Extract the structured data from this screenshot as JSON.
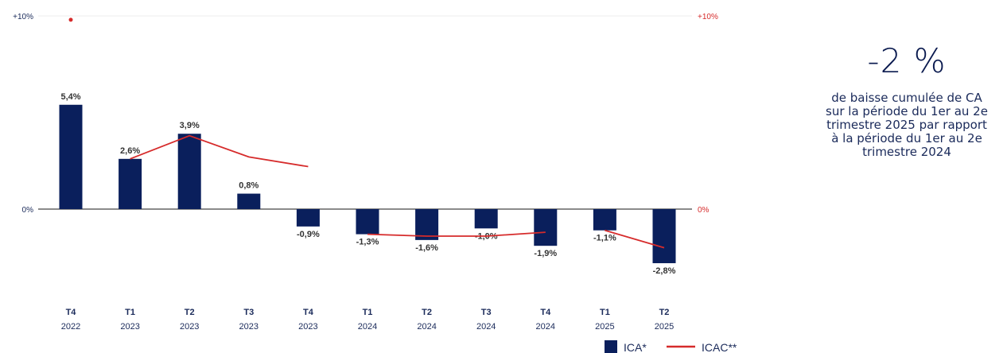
{
  "chart_data": {
    "type": "bar",
    "categories": [
      {
        "q": "T4",
        "year": "2022"
      },
      {
        "q": "T1",
        "year": "2023"
      },
      {
        "q": "T2",
        "year": "2023"
      },
      {
        "q": "T3",
        "year": "2023"
      },
      {
        "q": "T4",
        "year": "2023"
      },
      {
        "q": "T1",
        "year": "2024"
      },
      {
        "q": "T2",
        "year": "2024"
      },
      {
        "q": "T3",
        "year": "2024"
      },
      {
        "q": "T4",
        "year": "2024"
      },
      {
        "q": "T1",
        "year": "2025"
      },
      {
        "q": "T2",
        "year": "2025"
      }
    ],
    "series": [
      {
        "name": "ICA*",
        "type": "bar",
        "color": "#0a1f5c",
        "values": [
          5.4,
          2.6,
          3.9,
          0.8,
          -0.9,
          -1.3,
          -1.6,
          -1.0,
          -1.9,
          -1.1,
          -2.8
        ],
        "labels": [
          "5,4%",
          "2,6%",
          "3,9%",
          "0,8%",
          "-0,9%",
          "-1,3%",
          "-1,6%",
          "-1,0%",
          "-1,9%",
          "-1,1%",
          "-2,8%"
        ]
      },
      {
        "name": "ICAC**",
        "type": "line",
        "color": "#d62b2b",
        "segments": [
          {
            "x_index": [
              1,
              2,
              3,
              4
            ],
            "values": [
              2.6,
              3.8,
              2.7,
              2.2
            ]
          },
          {
            "x_index": [
              5,
              6,
              7,
              8
            ],
            "values": [
              -1.3,
              -1.4,
              -1.4,
              -1.2
            ]
          },
          {
            "x_index": [
              9,
              10
            ],
            "values": [
              -1.1,
              -2.0
            ]
          }
        ],
        "outlier": {
          "x_index": 0,
          "value": 9.8
        }
      }
    ],
    "ylim": [
      -5,
      10
    ],
    "yticks_left": [
      {
        "value": 10,
        "label": "+10%"
      },
      {
        "value": 0,
        "label": "0%"
      }
    ],
    "yticks_right": [
      {
        "value": 10,
        "label": "+10%"
      },
      {
        "value": 0,
        "label": "0%"
      }
    ],
    "legend_placement": "bottom-right",
    "grid": false
  },
  "side_panel": {
    "value": "-2 %",
    "lines": [
      "de baisse cumulée de CA",
      "sur la période du 1er au 2e",
      "trimestre 2025 par rapport",
      "à la période du 1er au 2e",
      "trimestre 2024"
    ]
  }
}
